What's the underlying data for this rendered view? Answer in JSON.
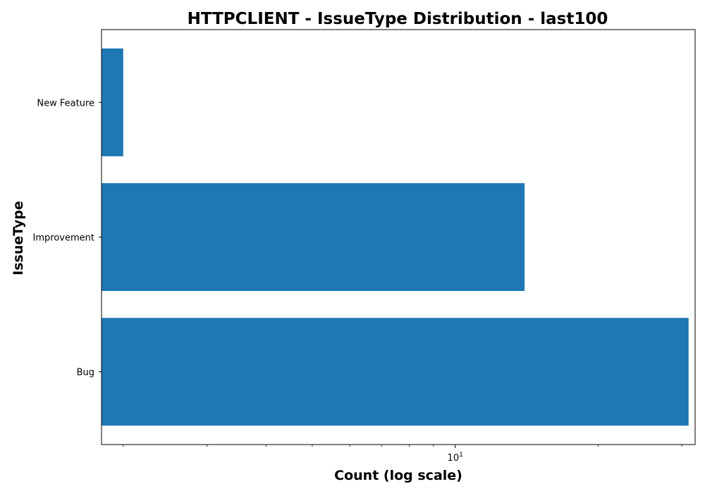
{
  "chart_data": {
    "type": "bar",
    "orientation": "horizontal",
    "title": "HTTPCLIENT - IssueType Distribution - last100",
    "xlabel": "Count (log scale)",
    "ylabel": "IssueType",
    "x_scale": "log",
    "xlim": [
      1.8,
      32
    ],
    "x_tick_labels": [
      {
        "value": 10,
        "base": "10",
        "exponent": "1"
      }
    ],
    "categories": [
      "Bug",
      "Improvement",
      "New Feature"
    ],
    "values": [
      31,
      14,
      2
    ],
    "bar_color": "#1f77b4",
    "grid": false,
    "legend": "none"
  }
}
